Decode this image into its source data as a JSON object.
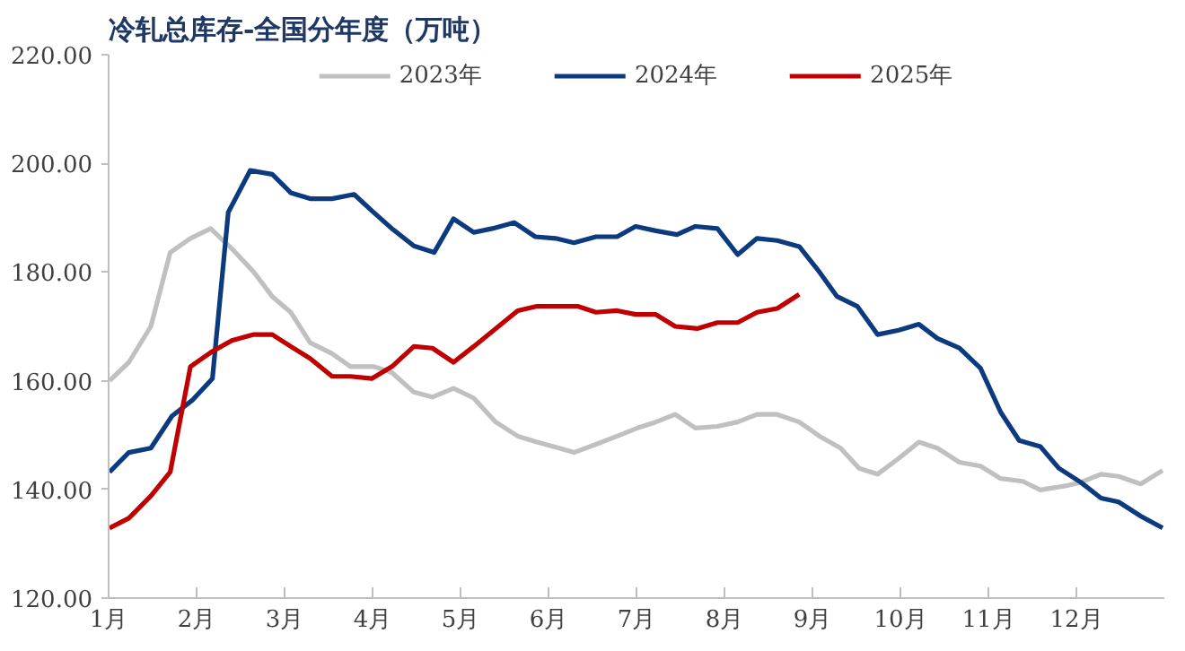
{
  "chart_data": {
    "type": "line",
    "title": "冷轧总库存-全国分年度（万吨）",
    "xlim": [
      1,
      13
    ],
    "xticks": [
      {
        "value": 1,
        "label": "1月"
      },
      {
        "value": 2,
        "label": "2月"
      },
      {
        "value": 3,
        "label": "3月"
      },
      {
        "value": 4,
        "label": "4月"
      },
      {
        "value": 5,
        "label": "5月"
      },
      {
        "value": 6,
        "label": "6月"
      },
      {
        "value": 7,
        "label": "7月"
      },
      {
        "value": 8,
        "label": "8月"
      },
      {
        "value": 9,
        "label": "9月"
      },
      {
        "value": 10,
        "label": "10月"
      },
      {
        "value": 11,
        "label": "11月"
      },
      {
        "value": 12,
        "label": "12月"
      }
    ],
    "ylim": [
      120,
      220
    ],
    "yticks": [
      {
        "value": 120,
        "label": "120.00"
      },
      {
        "value": 140,
        "label": "140.00"
      },
      {
        "value": 160,
        "label": "160.00"
      },
      {
        "value": 180,
        "label": "180.00"
      },
      {
        "value": 200,
        "label": "200.00"
      },
      {
        "value": 220,
        "label": "220.00"
      }
    ],
    "grid": false,
    "legend": "top",
    "marker": "none",
    "line_style": "solid",
    "series": [
      {
        "name": "2023年",
        "color": "#c0c0c0",
        "x": [
          1.01,
          1.23,
          1.48,
          1.7,
          1.93,
          2.16,
          2.4,
          2.65,
          2.86,
          3.07,
          3.29,
          3.54,
          3.75,
          4.02,
          4.22,
          4.47,
          4.68,
          4.92,
          5.15,
          5.4,
          5.65,
          5.87,
          6.12,
          6.29,
          6.54,
          6.78,
          7.01,
          7.22,
          7.44,
          7.67,
          7.92,
          8.15,
          8.37,
          8.6,
          8.85,
          9.08,
          9.32,
          9.53,
          9.74,
          9.98,
          10.21,
          10.42,
          10.67,
          10.91,
          11.14,
          11.39,
          11.59,
          11.86,
          12.05,
          12.28,
          12.48,
          12.73,
          12.98
        ],
        "values": [
          160,
          163.4,
          170,
          183.6,
          186.2,
          188,
          184.3,
          180,
          175.5,
          172.6,
          167,
          165,
          162.6,
          162.6,
          161.5,
          157.9,
          157,
          158.6,
          156.8,
          152.4,
          149.8,
          148.7,
          147.6,
          146.8,
          148.3,
          149.8,
          151.3,
          152.4,
          153.8,
          151.3,
          151.6,
          152.4,
          153.8,
          153.8,
          152.4,
          149.8,
          147.6,
          143.9,
          142.8,
          145.7,
          148.7,
          147.6,
          145,
          144.3,
          142,
          141.5,
          139.9,
          140.6,
          141.3,
          142.8,
          142.4,
          141,
          143.5
        ]
      },
      {
        "name": "2024年",
        "color": "#0b3a7e",
        "x": [
          1.01,
          1.23,
          1.48,
          1.72,
          1.95,
          2.18,
          2.36,
          2.61,
          2.86,
          3.07,
          3.29,
          3.54,
          3.79,
          3.99,
          4.22,
          4.47,
          4.7,
          4.92,
          5.15,
          5.36,
          5.61,
          5.85,
          6.08,
          6.29,
          6.54,
          6.78,
          6.99,
          7.22,
          7.46,
          7.67,
          7.92,
          8.15,
          8.37,
          8.6,
          8.85,
          9.08,
          9.28,
          9.51,
          9.74,
          9.98,
          10.21,
          10.42,
          10.67,
          10.91,
          11.14,
          11.35,
          11.59,
          11.8,
          12.05,
          12.28,
          12.48,
          12.73,
          12.98
        ],
        "values": [
          143.2,
          146.8,
          147.6,
          153.5,
          156.4,
          160.4,
          191,
          198.7,
          198,
          194.6,
          193.5,
          193.5,
          194.3,
          191.3,
          188,
          184.8,
          183.6,
          189.8,
          187.3,
          188,
          189.1,
          186.5,
          186.2,
          185.4,
          186.5,
          186.5,
          188.4,
          187.6,
          186.9,
          188.4,
          188,
          183.2,
          186.2,
          185.8,
          184.7,
          180,
          175.5,
          173.7,
          168.5,
          169.3,
          170.4,
          167.8,
          166,
          162.3,
          154.2,
          149,
          147.9,
          143.9,
          141.3,
          138.4,
          137.7,
          135.1,
          132.9
        ]
      },
      {
        "name": "2025年",
        "color": "#c00000",
        "x": [
          1.01,
          1.23,
          1.48,
          1.7,
          1.93,
          2.16,
          2.4,
          2.65,
          2.86,
          3.07,
          3.29,
          3.54,
          3.75,
          3.99,
          4.22,
          4.47,
          4.68,
          4.92,
          5.15,
          5.4,
          5.65,
          5.87,
          6.08,
          6.33,
          6.54,
          6.78,
          6.99,
          7.22,
          7.44,
          7.69,
          7.92,
          8.15,
          8.37,
          8.6,
          8.85
        ],
        "values": [
          132.9,
          134.7,
          138.8,
          143.2,
          162.6,
          165.2,
          167.4,
          168.5,
          168.5,
          166.3,
          164.1,
          160.8,
          160.8,
          160.4,
          162.6,
          166.3,
          166,
          163.4,
          166.3,
          169.6,
          172.9,
          173.7,
          173.7,
          173.7,
          172.6,
          172.9,
          172.2,
          172.2,
          170,
          169.6,
          170.7,
          170.7,
          172.6,
          173.3,
          175.9
        ]
      }
    ]
  }
}
